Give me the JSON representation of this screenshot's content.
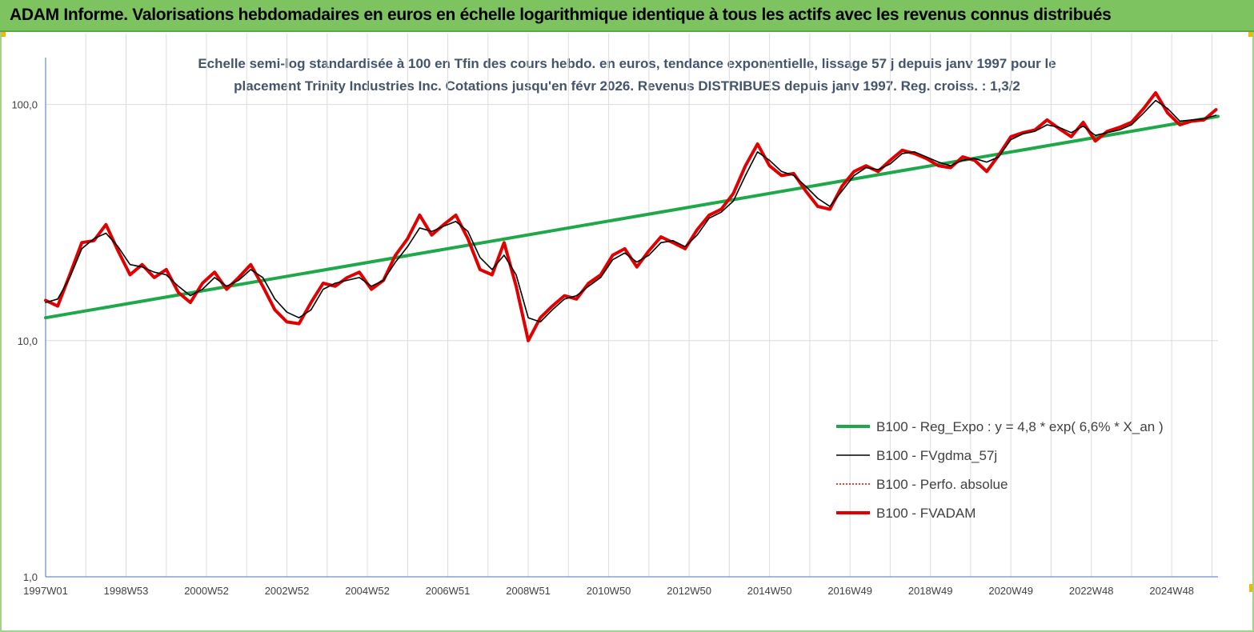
{
  "banner": {
    "title": "ADAM Informe. Valorisations hebdomadaires en euros en échelle logarithmique identique à tous les actifs avec les revenus connus distribués"
  },
  "chart_data": {
    "type": "line",
    "title_line1": "Echelle semi-log standardisée à 100 en Tfin des cours hebdo. en euros, tendance exponentielle, lissage 57 j depuis janv 1997 pour le",
    "title_line2": "placement Trinity Industries Inc. Cotations jusqu'en févr 2026. Revenus DISTRIBUES depuis janv 1997. Reg.  croiss. : 1,3/2",
    "xlabel": "",
    "ylabel": "",
    "y_scale": "log",
    "ylim": [
      1,
      200
    ],
    "xlim": [
      1997.0,
      2026.15
    ],
    "grid": true,
    "y_ticks": [
      1,
      10,
      100
    ],
    "y_tick_labels": [
      "1,0",
      "10,0",
      "100,0"
    ],
    "x_ticks": [
      {
        "label": "1997W01",
        "year": 1997.0
      },
      {
        "label": "1998W53",
        "year": 1999.0
      },
      {
        "label": "2000W52",
        "year": 2001.0
      },
      {
        "label": "2002W52",
        "year": 2003.0
      },
      {
        "label": "2004W52",
        "year": 2005.0
      },
      {
        "label": "2006W51",
        "year": 2007.0
      },
      {
        "label": "2008W51",
        "year": 2009.0
      },
      {
        "label": "2010W50",
        "year": 2011.0
      },
      {
        "label": "2012W50",
        "year": 2013.0
      },
      {
        "label": "2014W50",
        "year": 2015.0
      },
      {
        "label": "2016W49",
        "year": 2017.0
      },
      {
        "label": "2018W49",
        "year": 2019.0
      },
      {
        "label": "2020W49",
        "year": 2021.0
      },
      {
        "label": "2022W48",
        "year": 2023.0
      },
      {
        "label": "2024W48",
        "year": 2025.0
      }
    ],
    "legend_position": "right",
    "series": [
      {
        "name": "B100 - Reg_Expo : y = 4,8 * exp( 6,6% *  X_an )",
        "color": "#1fa84a",
        "style": "thick",
        "x": [
          1997.0,
          2026.15
        ],
        "y": [
          12.5,
          89.0
        ]
      },
      {
        "name": "B100 - FVgdma_57j",
        "color": "#000000",
        "style": "thin",
        "x": [
          1997.0,
          1997.3,
          1997.6,
          1997.9,
          1998.2,
          1998.5,
          1998.8,
          1999.1,
          1999.4,
          1999.7,
          2000.0,
          2000.3,
          2000.6,
          2000.9,
          2001.2,
          2001.5,
          2001.8,
          2002.1,
          2002.4,
          2002.7,
          2003.0,
          2003.3,
          2003.6,
          2003.9,
          2004.2,
          2004.5,
          2004.8,
          2005.1,
          2005.4,
          2005.7,
          2006.0,
          2006.3,
          2006.6,
          2006.9,
          2007.2,
          2007.5,
          2007.8,
          2008.1,
          2008.4,
          2008.7,
          2009.0,
          2009.3,
          2009.6,
          2009.9,
          2010.2,
          2010.5,
          2010.8,
          2011.1,
          2011.4,
          2011.7,
          2012.0,
          2012.3,
          2012.6,
          2012.9,
          2013.2,
          2013.5,
          2013.8,
          2014.1,
          2014.4,
          2014.7,
          2015.0,
          2015.3,
          2015.6,
          2015.9,
          2016.2,
          2016.5,
          2016.8,
          2017.1,
          2017.4,
          2017.7,
          2018.0,
          2018.3,
          2018.6,
          2018.9,
          2019.2,
          2019.5,
          2019.8,
          2020.1,
          2020.4,
          2020.7,
          2021.0,
          2021.3,
          2021.6,
          2021.9,
          2022.2,
          2022.5,
          2022.8,
          2023.1,
          2023.4,
          2023.7,
          2024.0,
          2024.3,
          2024.6,
          2024.9,
          2025.2,
          2025.5,
          2025.8,
          2026.1
        ],
        "y": [
          14.5,
          15.0,
          18.5,
          24.5,
          27.0,
          28.5,
          25.0,
          21.0,
          20.5,
          19.5,
          19.0,
          17.0,
          15.5,
          16.5,
          18.5,
          17.0,
          18.0,
          20.0,
          18.5,
          15.0,
          13.2,
          12.5,
          13.5,
          16.5,
          17.5,
          18.0,
          18.5,
          17.0,
          18.0,
          21.5,
          25.0,
          30.0,
          29.0,
          30.5,
          32.0,
          29.0,
          22.5,
          20.0,
          23.0,
          19.0,
          12.5,
          12.0,
          13.5,
          15.0,
          15.5,
          17.0,
          18.5,
          22.0,
          23.5,
          21.5,
          23.0,
          26.0,
          26.5,
          25.0,
          28.0,
          33.0,
          35.0,
          39.0,
          50.0,
          63.0,
          58.0,
          52.0,
          50.0,
          45.0,
          40.0,
          37.0,
          43.0,
          50.0,
          54.0,
          53.0,
          56.0,
          62.0,
          63.0,
          60.0,
          57.0,
          55.0,
          58.0,
          59.0,
          57.0,
          60.0,
          71.0,
          75.0,
          77.0,
          82.0,
          80.0,
          76.0,
          81.0,
          74.0,
          76.0,
          78.0,
          82.0,
          92.0,
          104.0,
          96.0,
          85.0,
          86.0,
          87.0,
          90.0
        ]
      },
      {
        "name": "B100 - Perfo. absolue",
        "color": "#e00000",
        "style": "dotted",
        "x": [
          1997.0,
          1997.3,
          1997.6,
          1997.9,
          1998.2,
          1998.5,
          1998.8,
          1999.1,
          1999.4,
          1999.7,
          2000.0,
          2000.3,
          2000.6,
          2000.9,
          2001.2,
          2001.5,
          2001.8,
          2002.1,
          2002.4,
          2002.7,
          2003.0,
          2003.3,
          2003.6,
          2003.9,
          2004.2,
          2004.5,
          2004.8,
          2005.1,
          2005.4,
          2005.7,
          2006.0,
          2006.3,
          2006.6,
          2006.9,
          2007.2,
          2007.5,
          2007.8,
          2008.1,
          2008.4,
          2008.7,
          2009.0,
          2009.3,
          2009.6,
          2009.9,
          2010.2,
          2010.5,
          2010.8,
          2011.1,
          2011.4,
          2011.7,
          2012.0,
          2012.3,
          2012.6,
          2012.9,
          2013.2,
          2013.5,
          2013.8,
          2014.1,
          2014.4,
          2014.7,
          2015.0,
          2015.3,
          2015.6,
          2015.9,
          2016.2,
          2016.5,
          2016.8,
          2017.1,
          2017.4,
          2017.7,
          2018.0,
          2018.3,
          2018.6,
          2018.9,
          2019.2,
          2019.5,
          2019.8,
          2020.1,
          2020.4,
          2020.7,
          2021.0,
          2021.3,
          2021.6,
          2021.9,
          2022.2,
          2022.5,
          2022.8,
          2023.1,
          2023.4,
          2023.7,
          2024.0,
          2024.3,
          2024.6,
          2024.9,
          2025.2,
          2025.5,
          2025.8,
          2026.1
        ],
        "y": [
          14.8,
          14.0,
          19.0,
          26.0,
          26.5,
          31.0,
          24.0,
          19.0,
          21.0,
          18.5,
          20.0,
          16.0,
          14.5,
          17.5,
          19.5,
          16.5,
          18.5,
          21.0,
          17.0,
          13.5,
          12.0,
          11.8,
          14.5,
          17.5,
          17.0,
          18.5,
          19.5,
          16.5,
          18.0,
          23.0,
          27.0,
          34.0,
          28.0,
          31.0,
          34.0,
          27.0,
          20.0,
          19.0,
          26.0,
          17.0,
          10.0,
          12.5,
          14.0,
          15.5,
          15.0,
          17.5,
          19.0,
          23.0,
          24.5,
          20.5,
          24.0,
          27.5,
          26.0,
          24.5,
          29.5,
          34.0,
          36.0,
          42.0,
          55.0,
          68.0,
          55.0,
          50.0,
          51.0,
          43.0,
          37.0,
          36.0,
          45.0,
          52.0,
          55.0,
          52.0,
          58.0,
          64.0,
          62.0,
          59.0,
          55.0,
          54.0,
          60.0,
          58.0,
          52.0,
          61.0,
          73.0,
          76.0,
          78.0,
          86.0,
          79.0,
          73.0,
          84.0,
          70.0,
          77.0,
          80.0,
          84.0,
          96.0,
          112.0,
          92.0,
          82.0,
          85.0,
          86.0,
          95.0
        ]
      },
      {
        "name": "B100 - FVADAM",
        "color": "#e00000",
        "style": "thick",
        "x": [
          1997.0,
          1997.3,
          1997.6,
          1997.9,
          1998.2,
          1998.5,
          1998.8,
          1999.1,
          1999.4,
          1999.7,
          2000.0,
          2000.3,
          2000.6,
          2000.9,
          2001.2,
          2001.5,
          2001.8,
          2002.1,
          2002.4,
          2002.7,
          2003.0,
          2003.3,
          2003.6,
          2003.9,
          2004.2,
          2004.5,
          2004.8,
          2005.1,
          2005.4,
          2005.7,
          2006.0,
          2006.3,
          2006.6,
          2006.9,
          2007.2,
          2007.5,
          2007.8,
          2008.1,
          2008.4,
          2008.7,
          2009.0,
          2009.3,
          2009.6,
          2009.9,
          2010.2,
          2010.5,
          2010.8,
          2011.1,
          2011.4,
          2011.7,
          2012.0,
          2012.3,
          2012.6,
          2012.9,
          2013.2,
          2013.5,
          2013.8,
          2014.1,
          2014.4,
          2014.7,
          2015.0,
          2015.3,
          2015.6,
          2015.9,
          2016.2,
          2016.5,
          2016.8,
          2017.1,
          2017.4,
          2017.7,
          2018.0,
          2018.3,
          2018.6,
          2018.9,
          2019.2,
          2019.5,
          2019.8,
          2020.1,
          2020.4,
          2020.7,
          2021.0,
          2021.3,
          2021.6,
          2021.9,
          2022.2,
          2022.5,
          2022.8,
          2023.1,
          2023.4,
          2023.7,
          2024.0,
          2024.3,
          2024.6,
          2024.9,
          2025.2,
          2025.5,
          2025.8,
          2026.1
        ],
        "y": [
          14.8,
          14.0,
          19.0,
          26.0,
          26.5,
          31.0,
          24.0,
          19.0,
          21.0,
          18.5,
          20.0,
          16.0,
          14.5,
          17.5,
          19.5,
          16.5,
          18.5,
          21.0,
          17.0,
          13.5,
          12.0,
          11.8,
          14.5,
          17.5,
          17.0,
          18.5,
          19.5,
          16.5,
          18.0,
          23.0,
          27.0,
          34.0,
          28.0,
          31.0,
          34.0,
          27.0,
          20.0,
          19.0,
          26.0,
          17.0,
          10.0,
          12.5,
          14.0,
          15.5,
          15.0,
          17.5,
          19.0,
          23.0,
          24.5,
          20.5,
          24.0,
          27.5,
          26.0,
          24.5,
          29.5,
          34.0,
          36.0,
          42.0,
          55.0,
          68.0,
          55.0,
          50.0,
          51.0,
          43.0,
          37.0,
          36.0,
          45.0,
          52.0,
          55.0,
          52.0,
          58.0,
          64.0,
          62.0,
          59.0,
          55.0,
          54.0,
          60.0,
          58.0,
          52.0,
          61.0,
          73.0,
          76.0,
          78.0,
          86.0,
          79.0,
          73.0,
          84.0,
          70.0,
          77.0,
          80.0,
          84.0,
          96.0,
          112.0,
          92.0,
          82.0,
          85.0,
          86.0,
          95.0
        ]
      }
    ]
  }
}
